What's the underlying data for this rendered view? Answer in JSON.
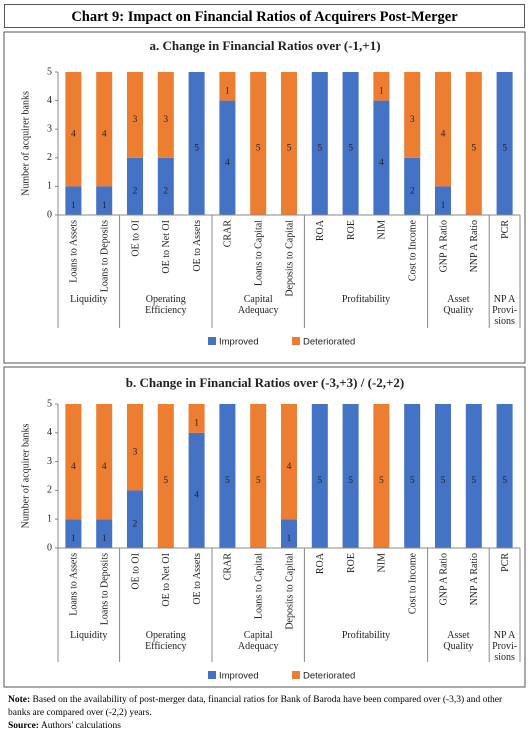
{
  "title": "Chart 9: Impact on Financial Ratios of  Acquirers Post-Merger",
  "chart_data": [
    {
      "type": "bar",
      "stacked": true,
      "title": "a. Change in Financial Ratios over (-1,+1)",
      "y_label": "Number of acquirer banks",
      "categories": [
        "Loans to Assets",
        "Loans to Deposits",
        "OE to OI",
        "OE to Net OI",
        "OE to Assets",
        "CRAR",
        "Loans to Capital",
        "Deposits to Capital",
        "ROA",
        "ROE",
        "NIM",
        "Cost to Income",
        "GNP A Ratio",
        "NNP A Ratio",
        "PCR"
      ],
      "groups": [
        {
          "name": [
            "Liquidity"
          ],
          "span": 2
        },
        {
          "name": [
            "Operating",
            "Efficiency"
          ],
          "span": 3
        },
        {
          "name": [
            "Capital",
            "Adequacy"
          ],
          "span": 3
        },
        {
          "name": [
            "Profitability"
          ],
          "span": 4
        },
        {
          "name": [
            "Asset",
            "Quality"
          ],
          "span": 2
        },
        {
          "name": [
            "NP A",
            "Provi-",
            "sions"
          ],
          "span": 1
        }
      ],
      "series": [
        {
          "name": "Improved",
          "color": "#4472c4",
          "values": [
            1,
            1,
            2,
            2,
            5,
            4,
            0,
            0,
            5,
            5,
            4,
            2,
            1,
            0,
            5
          ]
        },
        {
          "name": "Deteriorated",
          "color": "#ed7d31",
          "values": [
            4,
            4,
            3,
            3,
            0,
            1,
            5,
            5,
            0,
            0,
            1,
            3,
            4,
            5,
            0
          ]
        }
      ],
      "ylim": [
        0,
        5
      ],
      "yticks": [
        0,
        1,
        2,
        3,
        4,
        5
      ],
      "legend": "bottom"
    },
    {
      "type": "bar",
      "stacked": true,
      "title": "b. Change in Financial Ratios over (-3,+3) / (-2,+2)",
      "y_label": "Number of acquirer banks",
      "categories": [
        "Loans to Assets",
        "Loans to Deposits",
        "OE to OI",
        "OE to Net OI",
        "OE to Assets",
        "CRAR",
        "Loans to Capital",
        "Deposits to Capital",
        "ROA",
        "ROE",
        "NIM",
        "Cost to Income",
        "GNP A Ratio",
        "NNP A Ratio",
        "PCR"
      ],
      "groups": [
        {
          "name": [
            "Liquidity"
          ],
          "span": 2
        },
        {
          "name": [
            "Operating",
            "Efficiency"
          ],
          "span": 3
        },
        {
          "name": [
            "Capital",
            "Adequacy"
          ],
          "span": 3
        },
        {
          "name": [
            "Profitability"
          ],
          "span": 4
        },
        {
          "name": [
            "Asset",
            "Quality"
          ],
          "span": 2
        },
        {
          "name": [
            "NP A",
            "Provi-",
            "sions"
          ],
          "span": 1
        }
      ],
      "series": [
        {
          "name": "Improved",
          "color": "#4472c4",
          "values": [
            1,
            1,
            2,
            0,
            4,
            5,
            0,
            1,
            5,
            5,
            0,
            5,
            5,
            5,
            5
          ]
        },
        {
          "name": "Deteriorated",
          "color": "#ed7d31",
          "values": [
            4,
            4,
            3,
            5,
            1,
            0,
            5,
            4,
            0,
            0,
            5,
            0,
            0,
            0,
            0
          ]
        }
      ],
      "ylim": [
        0,
        5
      ],
      "yticks": [
        0,
        1,
        2,
        3,
        4,
        5
      ],
      "legend": "bottom"
    }
  ],
  "note_label": "Note:",
  "note": "Based on the availability of post-merger data, financial ratios for Bank of Baroda have been compared over (-3,3) and other banks are compared over (-2,2) years.",
  "source_label": "Source:",
  "source": "Authors' calculations"
}
